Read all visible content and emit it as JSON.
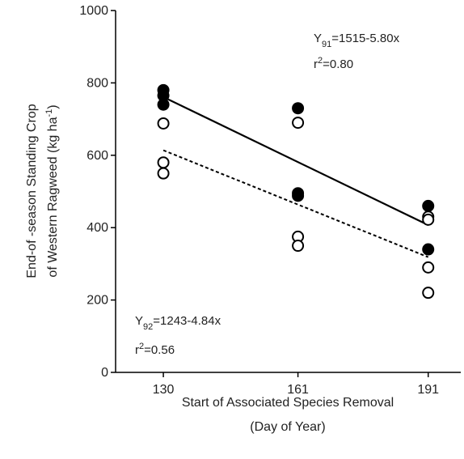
{
  "chart_data": {
    "type": "scatter",
    "xlabel": [
      "Start of Associated Species Removal",
      "(Day of Year)"
    ],
    "ylabel": [
      [
        "End-of -season Standing Crop"
      ],
      [
        "of Western Ragweed (kg ha",
        "-1",
        ")"
      ]
    ],
    "xlim": [
      119,
      198.5
    ],
    "xticks": [
      130,
      161,
      191
    ],
    "ylim": [
      0,
      1000
    ],
    "yticks": [
      0,
      200,
      400,
      600,
      800,
      1000
    ],
    "series": [
      {
        "color": "#000000",
        "filled": true,
        "x": [
          130,
          130,
          130,
          161,
          161,
          161,
          191,
          191
        ],
        "values": [
          780,
          765,
          740,
          730,
          495,
          488,
          460,
          340
        ]
      },
      {
        "color": "#000000",
        "filled": false,
        "x": [
          130,
          130,
          130,
          161,
          161,
          161,
          191,
          191,
          191,
          191
        ],
        "values": [
          688,
          580,
          550,
          690,
          375,
          350,
          430,
          422,
          290,
          220
        ]
      }
    ],
    "fits": [
      {
        "x": [
          130,
          191
        ],
        "values": [
          761,
          407.2
        ],
        "dash": false
      },
      {
        "x": [
          130,
          191
        ],
        "values": [
          613.8,
          318.6
        ],
        "dash": true
      }
    ],
    "annotations": [
      {
        "eq": [
          "Y",
          "91",
          "=1515-5.80x"
        ],
        "r2": [
          "r",
          "2",
          "=0.80"
        ]
      },
      {
        "eq": [
          "Y",
          "92",
          "=1243-4.84x"
        ],
        "r2": [
          "r",
          "2",
          "=0.56"
        ]
      }
    ]
  }
}
